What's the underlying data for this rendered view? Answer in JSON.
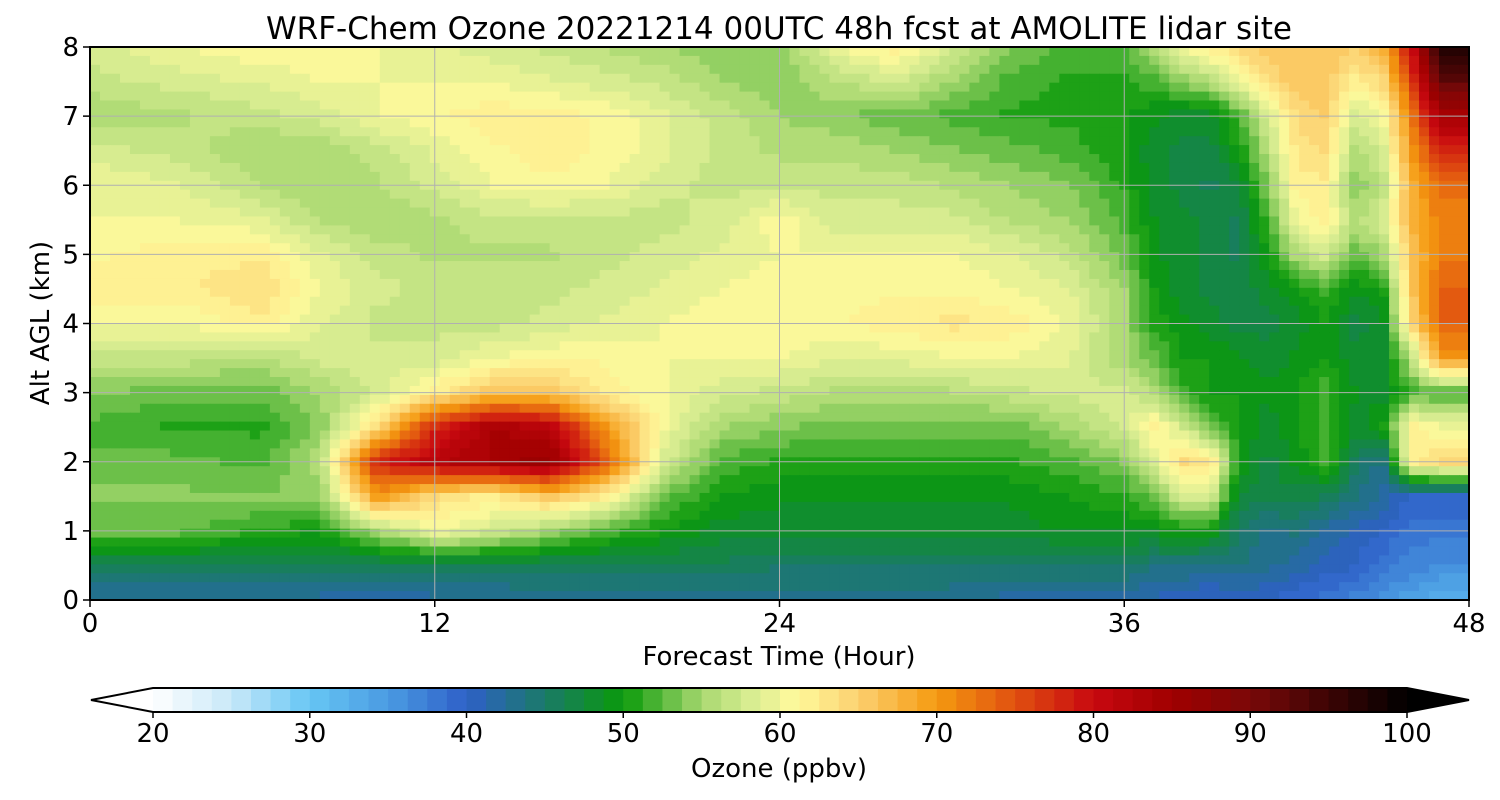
{
  "chart_data": {
    "type": "heatmap",
    "title": "WRF-Chem Ozone  20221214 00UTC 48h fcst at AMOLITE lidar site",
    "xlabel": "Forecast Time (Hour)",
    "ylabel": "Alt AGL (km)",
    "xlim": [
      0,
      48
    ],
    "ylim": [
      0,
      8
    ],
    "xticks": [
      "0",
      "12",
      "24",
      "36",
      "48"
    ],
    "yticks": [
      "0",
      "1",
      "2",
      "3",
      "4",
      "5",
      "6",
      "7",
      "8"
    ],
    "grid": true,
    "x": [
      0,
      3,
      6,
      8,
      10,
      12,
      14,
      16,
      18,
      20,
      22,
      24,
      26,
      28,
      30,
      32,
      34,
      36,
      37,
      38,
      39,
      40,
      41,
      42,
      43,
      44,
      45,
      46,
      47,
      48
    ],
    "y": [
      0,
      0.5,
      1,
      1.5,
      2,
      2.5,
      3,
      3.5,
      4,
      4.5,
      5,
      5.5,
      6,
      6.5,
      7,
      7.5,
      8
    ],
    "z_units": "ppbv",
    "z": [
      [
        42,
        42,
        42,
        42,
        41,
        42,
        42,
        43,
        43,
        43,
        43,
        43,
        43,
        43,
        43,
        42,
        42,
        42,
        41,
        40,
        40,
        40,
        40,
        39,
        38,
        37,
        36,
        34,
        33,
        33
      ],
      [
        46,
        46,
        46,
        46,
        46,
        46,
        46,
        46,
        46,
        46,
        46,
        45,
        45,
        45,
        45,
        45,
        45,
        45,
        44,
        44,
        43,
        44,
        43,
        42,
        41,
        40,
        38,
        37,
        36,
        36
      ],
      [
        53,
        53,
        51,
        50,
        55,
        60,
        58,
        55,
        52,
        50,
        48,
        48,
        48,
        48,
        48,
        48,
        49,
        49,
        49,
        50,
        50,
        45,
        43,
        44,
        42,
        41,
        40,
        38,
        38,
        38
      ],
      [
        54,
        54,
        54,
        54,
        70,
        64,
        62,
        66,
        62,
        53,
        50,
        49,
        49,
        49,
        49,
        49,
        50,
        51,
        53,
        58,
        58,
        47,
        47,
        47,
        46,
        44,
        42,
        40,
        40,
        40
      ],
      [
        53,
        53,
        52,
        56,
        78,
        82,
        84,
        86,
        74,
        58,
        52,
        51,
        51,
        51,
        51,
        51,
        52,
        54,
        58,
        64,
        63,
        50,
        47,
        49,
        52,
        46,
        43,
        62,
        64,
        64
      ],
      [
        52,
        51,
        51,
        54,
        64,
        78,
        84,
        82,
        70,
        60,
        55,
        54,
        53,
        53,
        53,
        53,
        55,
        58,
        62,
        58,
        53,
        50,
        48,
        50,
        52,
        48,
        50,
        62,
        60,
        60
      ],
      [
        54,
        53,
        53,
        55,
        58,
        62,
        66,
        66,
        62,
        60,
        58,
        57,
        56,
        56,
        56,
        57,
        58,
        58,
        56,
        52,
        50,
        50,
        49,
        50,
        52,
        49,
        48,
        52,
        52,
        52
      ],
      [
        57,
        57,
        56,
        58,
        58,
        58,
        60,
        61,
        61,
        60,
        60,
        60,
        59,
        59,
        60,
        60,
        59,
        55,
        53,
        50,
        50,
        49,
        48,
        49,
        50,
        48,
        48,
        56,
        70,
        70
      ],
      [
        60,
        60,
        62,
        59,
        57,
        57,
        57,
        58,
        59,
        60,
        61,
        61,
        61,
        62,
        63,
        62,
        60,
        55,
        51,
        49,
        48,
        47,
        47,
        48,
        50,
        47,
        48,
        64,
        74,
        74
      ],
      [
        62,
        62,
        64,
        60,
        58,
        57,
        57,
        57,
        58,
        59,
        60,
        61,
        61,
        61,
        61,
        60,
        59,
        55,
        50,
        48,
        47,
        47,
        48,
        50,
        52,
        49,
        50,
        66,
        74,
        74
      ],
      [
        61,
        62,
        62,
        59,
        57,
        56,
        56,
        56,
        57,
        58,
        59,
        60,
        60,
        60,
        60,
        59,
        57,
        53,
        49,
        48,
        47,
        46,
        50,
        56,
        58,
        53,
        55,
        66,
        72,
        72
      ],
      [
        60,
        60,
        59,
        56,
        55,
        56,
        57,
        57,
        57,
        57,
        58,
        61,
        58,
        58,
        58,
        56,
        55,
        52,
        49,
        48,
        47,
        46,
        52,
        60,
        62,
        56,
        58,
        68,
        72,
        72
      ],
      [
        60,
        59,
        56,
        55,
        56,
        58,
        60,
        61,
        60,
        58,
        57,
        57,
        57,
        57,
        56,
        55,
        54,
        51,
        48,
        47,
        46,
        47,
        54,
        62,
        62,
        54,
        56,
        68,
        73,
        73
      ],
      [
        58,
        57,
        55,
        55,
        57,
        59,
        61,
        62,
        61,
        59,
        57,
        56,
        56,
        55,
        54,
        53,
        52,
        50,
        48,
        47,
        47,
        50,
        56,
        63,
        64,
        56,
        58,
        70,
        78,
        78
      ],
      [
        55,
        56,
        57,
        58,
        60,
        61,
        62,
        62,
        61,
        59,
        57,
        55,
        54,
        53,
        52,
        51,
        51,
        50,
        49,
        48,
        48,
        52,
        58,
        64,
        65,
        58,
        60,
        72,
        84,
        84
      ],
      [
        57,
        58,
        59,
        60,
        60,
        60,
        60,
        59,
        58,
        57,
        55,
        54,
        56,
        58,
        55,
        52,
        51,
        51,
        52,
        54,
        56,
        60,
        64,
        66,
        66,
        62,
        64,
        76,
        92,
        92
      ],
      [
        58,
        60,
        61,
        61,
        60,
        59,
        58,
        57,
        56,
        55,
        54,
        54,
        60,
        62,
        58,
        54,
        52,
        52,
        56,
        60,
        62,
        64,
        66,
        66,
        66,
        65,
        68,
        80,
        98,
        98
      ]
    ]
  },
  "colorbar": {
    "label": "Ozone  (ppbv)",
    "min": 20,
    "max": 100,
    "ticks": [
      "20",
      "30",
      "40",
      "50",
      "60",
      "70",
      "80",
      "90",
      "100"
    ],
    "extend": "both",
    "colors": [
      {
        "v": 20,
        "c": "#ffffff"
      },
      {
        "v": 25,
        "c": "#c8e8f8"
      },
      {
        "v": 30,
        "c": "#66c6f4"
      },
      {
        "v": 35,
        "c": "#4a9be2"
      },
      {
        "v": 40,
        "c": "#2e60c8"
      },
      {
        "v": 45,
        "c": "#1a7a68"
      },
      {
        "v": 50,
        "c": "#0a9a0a"
      },
      {
        "v": 55,
        "c": "#a8d870"
      },
      {
        "v": 58,
        "c": "#d6ec90"
      },
      {
        "v": 61,
        "c": "#fffa9c"
      },
      {
        "v": 65,
        "c": "#fcd070"
      },
      {
        "v": 70,
        "c": "#f59a10"
      },
      {
        "v": 75,
        "c": "#e05010"
      },
      {
        "v": 80,
        "c": "#c80810"
      },
      {
        "v": 85,
        "c": "#a00000"
      },
      {
        "v": 90,
        "c": "#7a0808"
      },
      {
        "v": 95,
        "c": "#3c0404"
      },
      {
        "v": 100,
        "c": "#000000"
      }
    ]
  }
}
